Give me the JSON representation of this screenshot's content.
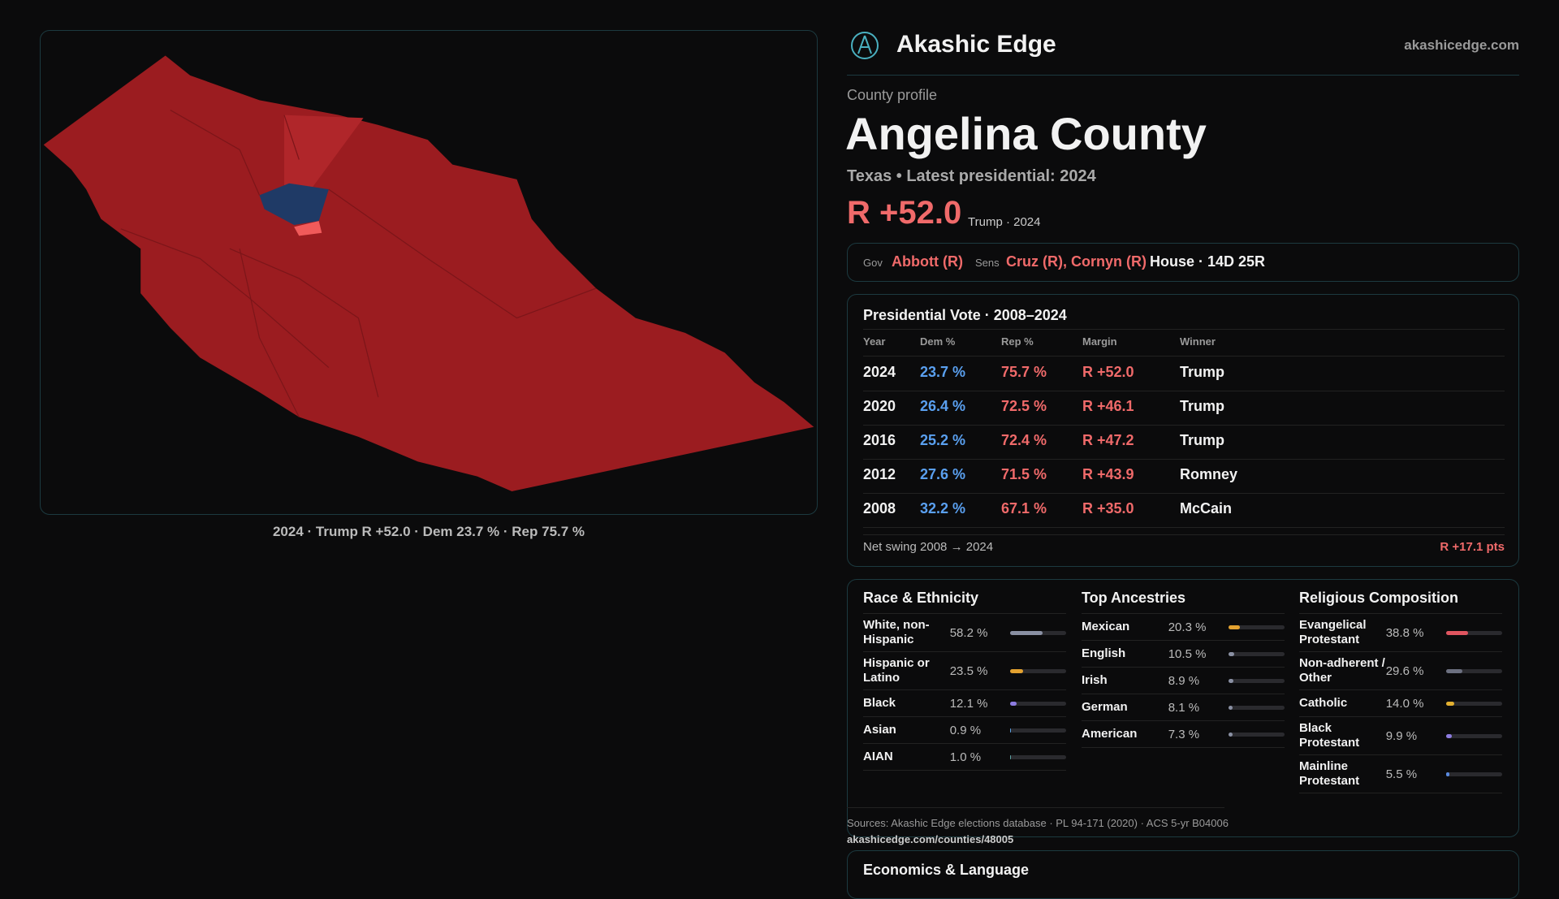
{
  "header": {
    "brand": "Akashic Edge",
    "site": "akashicedge.com"
  },
  "map": {
    "caption": "2024 · Trump R +52.0 · Dem 23.7 % · Rep 75.7 %"
  },
  "profile": {
    "eyebrow": "County profile",
    "title": "Angelina County",
    "subtitle": "Texas • Latest presidential: 2024",
    "margin": "R +52.0",
    "margin_note": "Trump · 2024"
  },
  "officials": {
    "gov_label": "Gov",
    "gov": "Abbott (R)",
    "sens_label": "Sens",
    "sens": "Cruz (R), Cornyn (R)",
    "house": "House · 14D 25R"
  },
  "presidential": {
    "title": "Presidential Vote · 2008–2024",
    "columns": [
      "Year",
      "Dem %",
      "Rep %",
      "Margin",
      "Winner"
    ],
    "rows": [
      [
        "2024",
        "23.7 %",
        "75.7 %",
        "R +52.0",
        "Trump"
      ],
      [
        "2020",
        "26.4 %",
        "72.5 %",
        "R +46.1",
        "Trump"
      ],
      [
        "2016",
        "25.2 %",
        "72.4 %",
        "R +47.2",
        "Trump"
      ],
      [
        "2012",
        "27.6 %",
        "71.5 %",
        "R +43.9",
        "Romney"
      ],
      [
        "2008",
        "32.2 %",
        "67.1 %",
        "R +35.0",
        "McCain"
      ]
    ],
    "swing_label": "Net swing 2008 → 2024",
    "swing": "R +17.1 pts"
  },
  "demographics": [
    {
      "title": "Race & Ethnicity",
      "rows": [
        {
          "name": "White, non-Hispanic",
          "value": 58.2,
          "label": "58.2 %",
          "color": "#8a90a3"
        },
        {
          "name": "Hispanic or Latino",
          "value": 23.5,
          "label": "23.5 %",
          "color": "#e3a230"
        },
        {
          "name": "Black",
          "value": 12.1,
          "label": "12.1 %",
          "color": "#8d7ce0"
        },
        {
          "name": "Asian",
          "value": 0.9,
          "label": "0.9 %",
          "color": "#5aa0e0"
        },
        {
          "name": "AIAN",
          "value": 1.0,
          "label": "1.0 %",
          "color": "#5aa0a0"
        }
      ]
    },
    {
      "title": "Top Ancestries",
      "rows": [
        {
          "name": "Mexican",
          "value": 20.3,
          "label": "20.3 %",
          "color": "#e3a230"
        },
        {
          "name": "English",
          "value": 10.5,
          "label": "10.5 %",
          "color": "#8a90a3"
        },
        {
          "name": "Irish",
          "value": 8.9,
          "label": "8.9 %",
          "color": "#8a90a3"
        },
        {
          "name": "German",
          "value": 8.1,
          "label": "8.1 %",
          "color": "#8a90a3"
        },
        {
          "name": "American",
          "value": 7.3,
          "label": "7.3 %",
          "color": "#8a90a3"
        }
      ]
    },
    {
      "title": "Religious Composition",
      "rows": [
        {
          "name": "Evangelical Protestant",
          "value": 38.8,
          "label": "38.8 %",
          "color": "#e05560"
        },
        {
          "name": "Non-adherent / Other",
          "value": 29.6,
          "label": "29.6 %",
          "color": "#6c7080"
        },
        {
          "name": "Catholic",
          "value": 14.0,
          "label": "14.0 %",
          "color": "#e3b030"
        },
        {
          "name": "Black Protestant",
          "value": 9.9,
          "label": "9.9 %",
          "color": "#8d7ce0"
        },
        {
          "name": "Mainline Protestant",
          "value": 5.5,
          "label": "5.5 %",
          "color": "#5a8ae0"
        }
      ]
    }
  ],
  "sources": {
    "text": "Sources: Akashic Edge elections database · PL 94-171 (2020) · ACS 5-yr B04006",
    "url": "akashicedge.com/counties/48005"
  },
  "economics": {
    "title": "Economics & Language"
  }
}
